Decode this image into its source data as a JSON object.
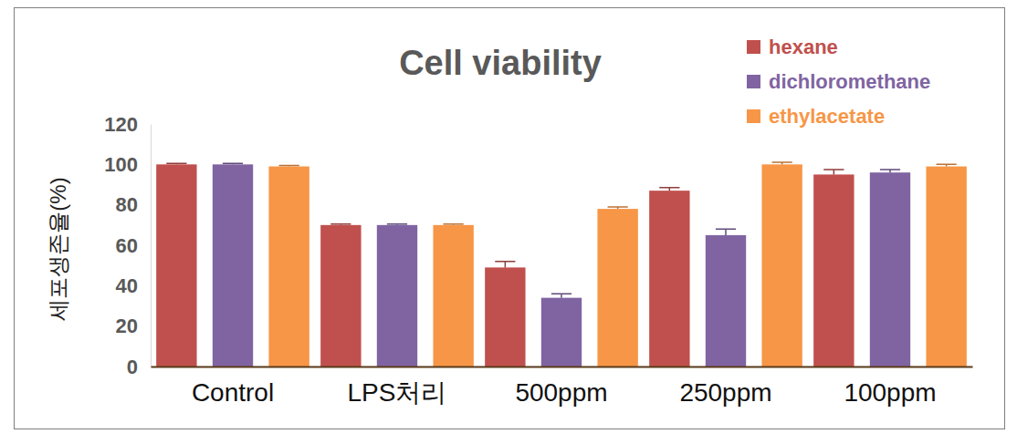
{
  "chart_data": {
    "type": "bar",
    "title": "Cell viability",
    "ylabel": "세포생존율(%)",
    "categories": [
      "Control",
      "LPS처리",
      "500ppm",
      "250ppm",
      "100ppm"
    ],
    "series": [
      {
        "name": "hexane",
        "color": "#c0504d",
        "values": [
          100,
          70,
          49,
          87,
          95
        ],
        "errors": [
          0.5,
          0.5,
          3,
          1.5,
          2.5
        ]
      },
      {
        "name": "dichloromethane",
        "color": "#8064a2",
        "values": [
          100,
          70,
          34,
          65,
          96
        ],
        "errors": [
          0.5,
          0.5,
          2,
          3,
          1.5
        ]
      },
      {
        "name": "ethylacetate",
        "color": "#f79646",
        "values": [
          99,
          70,
          78,
          100,
          99
        ],
        "errors": [
          0.5,
          0.5,
          1,
          1,
          1
        ]
      }
    ],
    "ylim": [
      0,
      120
    ],
    "yticks": [
      0,
      20,
      40,
      60,
      80,
      100,
      120
    ],
    "grid": false,
    "legend": "top-right"
  }
}
